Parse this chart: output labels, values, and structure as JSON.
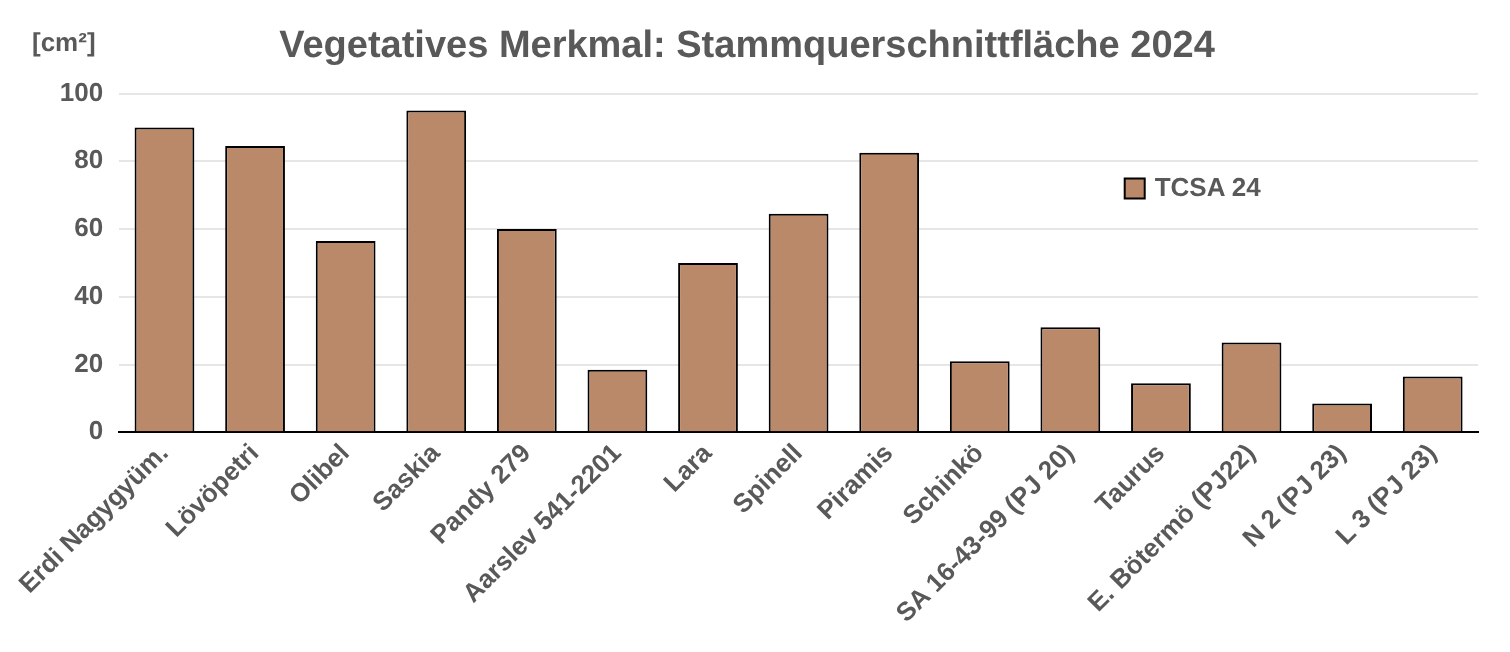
{
  "chart_data": {
    "type": "bar",
    "title": "Vegetatives Merkmal: Stammquerschnittfläche 2024",
    "ylabel": "[cm²]",
    "categories": [
      "Erdi Nagygyüm.",
      "Lövöpetri",
      "Olibel",
      "Saskia",
      "Pandy 279",
      "Aarslev 541-2201",
      "Lara",
      "Spinell",
      "Piramis",
      "Schinkö",
      "SA 16-43-99 (PJ 20)",
      "Taurus",
      "E. Bötermö (PJ22)",
      "N 2 (PJ 23)",
      "L 3 (PJ 23)"
    ],
    "series": [
      {
        "name": "TCSA 24",
        "color": "#b9896a",
        "values": [
          90,
          84.5,
          56.5,
          95,
          60,
          18.5,
          50,
          64.5,
          82.5,
          21,
          31,
          14.5,
          26.5,
          8.5,
          16.5
        ]
      }
    ],
    "ylim": [
      0,
      100
    ],
    "yticks": [
      0,
      20,
      40,
      60,
      80,
      100
    ],
    "grid": "y",
    "legend": "top right"
  }
}
